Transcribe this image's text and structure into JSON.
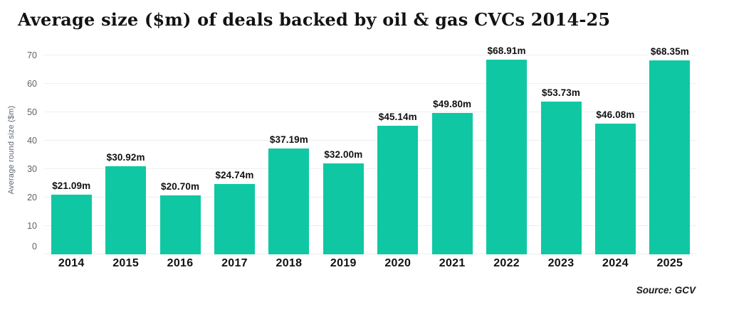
{
  "title": "Average size ($m) of deals backed by oil & gas CVCs 2014-25",
  "source": "Source: GCV",
  "colors": {
    "bar": "#0fc8a3",
    "grid": "#efefef",
    "axis_text": "#5f6368",
    "label_text": "#111111"
  },
  "chart_data": {
    "type": "bar",
    "title": "Average size ($m) of deals backed by oil & gas CVCs 2014-25",
    "categories": [
      "2014",
      "2015",
      "2016",
      "2017",
      "2018",
      "2019",
      "2020",
      "2021",
      "2022",
      "2023",
      "2024",
      "2025"
    ],
    "values": [
      21.09,
      30.92,
      20.7,
      24.74,
      37.19,
      32.0,
      45.14,
      49.8,
      68.91,
      53.73,
      46.08,
      68.35
    ],
    "value_labels": [
      "$21.09m",
      "$30.92m",
      "$20.70m",
      "$24.74m",
      "$37.19m",
      "$32.00m",
      "$45.14m",
      "$49.80m",
      "$68.91m",
      "$53.73m",
      "$46.08m",
      "$68.35m"
    ],
    "xlabel": "",
    "ylabel": "Average round size ($m)",
    "yticks": [
      0,
      10,
      20,
      30,
      40,
      50,
      60,
      70
    ],
    "ylim": [
      0,
      73.5
    ],
    "grid": "horizontal",
    "legend": "none",
    "source": "Source: GCV"
  }
}
